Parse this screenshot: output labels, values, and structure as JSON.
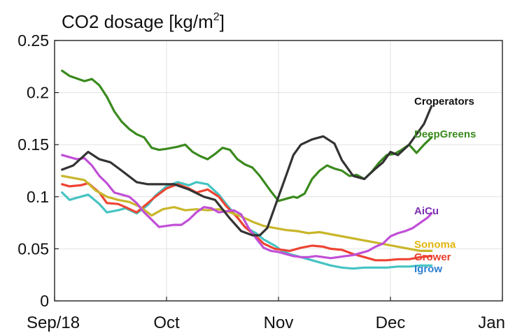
{
  "chart_data": {
    "type": "line",
    "title": "CO2 dosage [kg/m",
    "title_superscript": "2",
    "title_suffix": "]",
    "xlabel": "",
    "ylabel": "",
    "x_ticks": [
      "Sep/18",
      "Oct",
      "Nov",
      "Dec",
      "Jan"
    ],
    "y_ticks": [
      "0",
      "0.05",
      "0.1",
      "0.15",
      "0.2",
      "0.25"
    ],
    "ylim": [
      0,
      0.25
    ],
    "grid": true,
    "series": [
      {
        "name": "Croperators",
        "color": "#333333",
        "label_color": "#111111",
        "x": [
          2,
          5,
          9,
          12,
          15,
          18,
          22,
          25,
          28,
          32,
          36,
          40,
          43,
          47,
          50,
          53,
          55,
          57,
          59,
          60,
          62,
          64,
          66,
          69,
          72,
          75,
          77,
          80,
          83,
          86,
          88,
          90,
          92,
          95,
          97,
          99,
          101
        ],
        "values": [
          0.126,
          0.13,
          0.143,
          0.136,
          0.133,
          0.125,
          0.114,
          0.112,
          0.112,
          0.112,
          0.107,
          0.1,
          0.097,
          0.079,
          0.067,
          0.063,
          0.063,
          0.07,
          0.09,
          0.1,
          0.12,
          0.14,
          0.15,
          0.155,
          0.158,
          0.151,
          0.135,
          0.12,
          0.117,
          0.127,
          0.133,
          0.143,
          0.14,
          0.15,
          0.16,
          0.17,
          0.187
        ]
      },
      {
        "name": "DeepGreens",
        "color": "#3a8a1e",
        "label_color": "#3a8a1e",
        "x": [
          2,
          4,
          8,
          10,
          12,
          14,
          16,
          18,
          20,
          22,
          24,
          26,
          28,
          30,
          33,
          35,
          37,
          39,
          41,
          43,
          45,
          47,
          49,
          51,
          53,
          55,
          57,
          58,
          60,
          62,
          64,
          65,
          67,
          69,
          71,
          73,
          75,
          77,
          79,
          81,
          83,
          85,
          87,
          89,
          91,
          93,
          95,
          97,
          99,
          101
        ],
        "values": [
          0.221,
          0.216,
          0.211,
          0.213,
          0.207,
          0.196,
          0.182,
          0.172,
          0.165,
          0.16,
          0.157,
          0.147,
          0.145,
          0.146,
          0.148,
          0.15,
          0.143,
          0.139,
          0.136,
          0.141,
          0.147,
          0.145,
          0.136,
          0.131,
          0.128,
          0.12,
          0.11,
          0.105,
          0.096,
          0.098,
          0.1,
          0.099,
          0.103,
          0.117,
          0.125,
          0.13,
          0.127,
          0.125,
          0.12,
          0.121,
          0.117,
          0.124,
          0.133,
          0.14,
          0.141,
          0.145,
          0.15,
          0.142,
          0.15,
          0.157
        ]
      },
      {
        "name": "AiCu",
        "color": "#c04fd6",
        "label_color": "#7b2fb0",
        "x": [
          2,
          4,
          6,
          8,
          10,
          12,
          14,
          16,
          18,
          20,
          22,
          24,
          26,
          28,
          30,
          32,
          34,
          36,
          38,
          40,
          42,
          44,
          46,
          48,
          50,
          52,
          54,
          56,
          58,
          60,
          62,
          64,
          66,
          68,
          70,
          72,
          74,
          76,
          78,
          80,
          82,
          84,
          86,
          88,
          90,
          92,
          94,
          96,
          98,
          100,
          101
        ],
        "values": [
          0.14,
          0.138,
          0.136,
          0.137,
          0.13,
          0.12,
          0.113,
          0.104,
          0.102,
          0.1,
          0.094,
          0.085,
          0.078,
          0.071,
          0.072,
          0.073,
          0.073,
          0.078,
          0.085,
          0.09,
          0.089,
          0.085,
          0.086,
          0.087,
          0.083,
          0.07,
          0.06,
          0.051,
          0.048,
          0.047,
          0.045,
          0.043,
          0.042,
          0.042,
          0.043,
          0.042,
          0.041,
          0.042,
          0.043,
          0.044,
          0.046,
          0.048,
          0.052,
          0.055,
          0.062,
          0.065,
          0.067,
          0.07,
          0.075,
          0.08,
          0.084
        ]
      },
      {
        "name": "Sonoma",
        "color": "#c9b62a",
        "label_color": "#e0b50c",
        "x": [
          2,
          5,
          8,
          11,
          14,
          17,
          20,
          23,
          26,
          29,
          32,
          35,
          38,
          41,
          44,
          47,
          50,
          53,
          56,
          59,
          62,
          65,
          68,
          71,
          74,
          77,
          80,
          83,
          86,
          89,
          92,
          95,
          98,
          101
        ],
        "values": [
          0.12,
          0.118,
          0.116,
          0.106,
          0.1,
          0.097,
          0.095,
          0.09,
          0.082,
          0.088,
          0.09,
          0.087,
          0.088,
          0.087,
          0.088,
          0.085,
          0.081,
          0.076,
          0.072,
          0.07,
          0.068,
          0.067,
          0.065,
          0.066,
          0.064,
          0.062,
          0.06,
          0.058,
          0.056,
          0.054,
          0.052,
          0.05,
          0.048,
          0.048
        ]
      },
      {
        "name": "Grower",
        "color": "#ee4433",
        "label_color": "#e8402e",
        "x": [
          2,
          4,
          7,
          9,
          12,
          14,
          17,
          19,
          22,
          25,
          27,
          30,
          33,
          36,
          38,
          41,
          44,
          46,
          49,
          51,
          54,
          56,
          59,
          61,
          63,
          66,
          69,
          72,
          74,
          77,
          80,
          83,
          86,
          89,
          92,
          95,
          98,
          101
        ],
        "values": [
          0.112,
          0.11,
          0.111,
          0.113,
          0.104,
          0.094,
          0.093,
          0.09,
          0.085,
          0.094,
          0.1,
          0.108,
          0.112,
          0.108,
          0.104,
          0.107,
          0.1,
          0.091,
          0.08,
          0.071,
          0.062,
          0.055,
          0.05,
          0.049,
          0.048,
          0.051,
          0.053,
          0.052,
          0.05,
          0.049,
          0.045,
          0.042,
          0.039,
          0.039,
          0.04,
          0.04,
          0.042,
          0.043
        ]
      },
      {
        "name": "Igrow",
        "color": "#45c4c2",
        "label_color": "#2c7fd1",
        "x": [
          2,
          4,
          7,
          9,
          12,
          14,
          17,
          19,
          22,
          25,
          27,
          30,
          33,
          36,
          38,
          41,
          44,
          46,
          49,
          51,
          54,
          56,
          59,
          61,
          63,
          66,
          69,
          72,
          74,
          77,
          80,
          83,
          86,
          89,
          92,
          95,
          98,
          101
        ],
        "values": [
          0.104,
          0.097,
          0.1,
          0.102,
          0.093,
          0.085,
          0.087,
          0.089,
          0.084,
          0.092,
          0.101,
          0.11,
          0.114,
          0.111,
          0.114,
          0.112,
          0.102,
          0.093,
          0.08,
          0.071,
          0.065,
          0.059,
          0.053,
          0.048,
          0.045,
          0.042,
          0.039,
          0.036,
          0.034,
          0.032,
          0.031,
          0.032,
          0.032,
          0.032,
          0.033,
          0.033,
          0.034,
          0.034
        ]
      }
    ]
  }
}
